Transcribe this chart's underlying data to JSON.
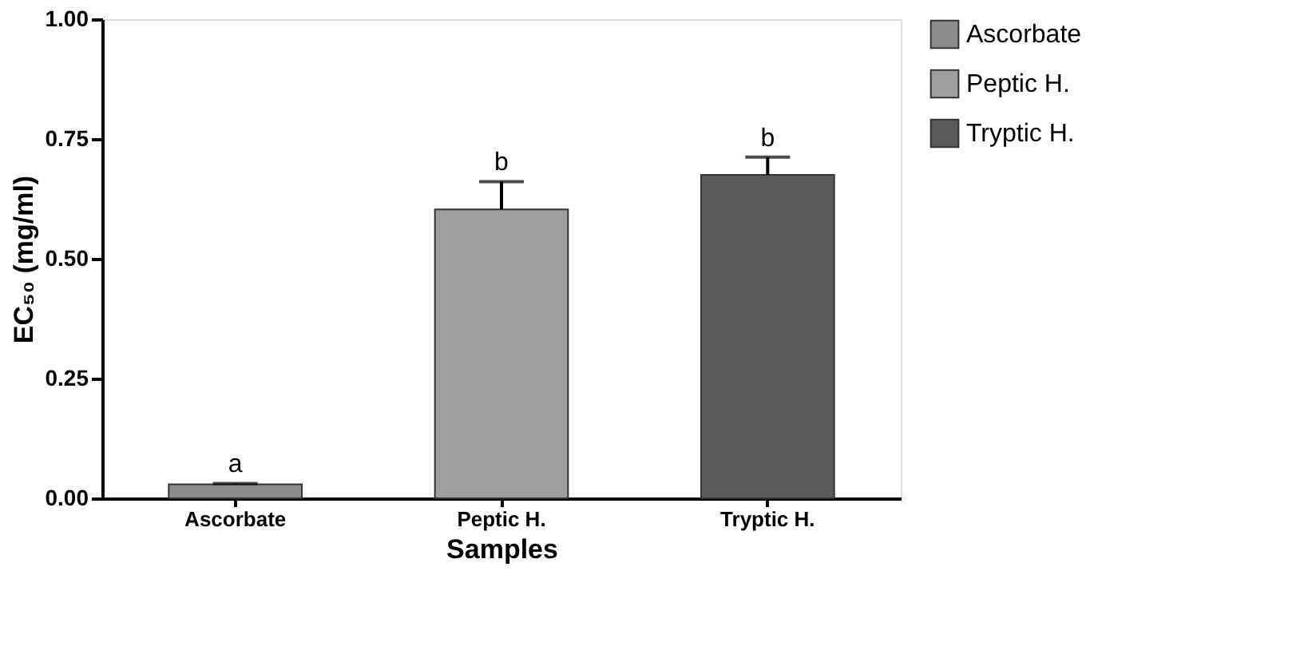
{
  "chart_data": {
    "type": "bar",
    "xlabel": "Samples",
    "ylabel": "EC₅₀ (mg/ml)",
    "categories": [
      "Ascorbate",
      "Peptic H.",
      "Tryptic H."
    ],
    "series": [
      {
        "name": "Ascorbate",
        "color": "#8c8c8c",
        "values": [
          0.029,
          null,
          null
        ],
        "errors": [
          0.002,
          null,
          null
        ]
      },
      {
        "name": "Peptic H.",
        "color": "#9e9e9e",
        "values": [
          null,
          0.603,
          null
        ],
        "errors": [
          null,
          0.058,
          null
        ]
      },
      {
        "name": "Tryptic H.",
        "color": "#5a5a5a",
        "values": [
          null,
          null,
          0.675
        ],
        "errors": [
          null,
          null,
          0.037
        ]
      }
    ],
    "ylim": [
      0,
      1
    ],
    "yticks": [
      {
        "value": 0,
        "label": "0.00"
      },
      {
        "value": 0.25,
        "label": "0.25"
      },
      {
        "value": 0.5,
        "label": "0.50"
      },
      {
        "value": 0.75,
        "label": "0.75"
      },
      {
        "value": 1,
        "label": "1.00"
      }
    ],
    "grid": false,
    "legend": "top right",
    "annotations": [
      {
        "text": "a",
        "x": "Ascorbate",
        "y": 0.031
      },
      {
        "text": "b",
        "x": "Peptic H.",
        "y": 0.661
      },
      {
        "text": "b",
        "x": "Tryptic H.",
        "y": 0.712
      }
    ]
  }
}
